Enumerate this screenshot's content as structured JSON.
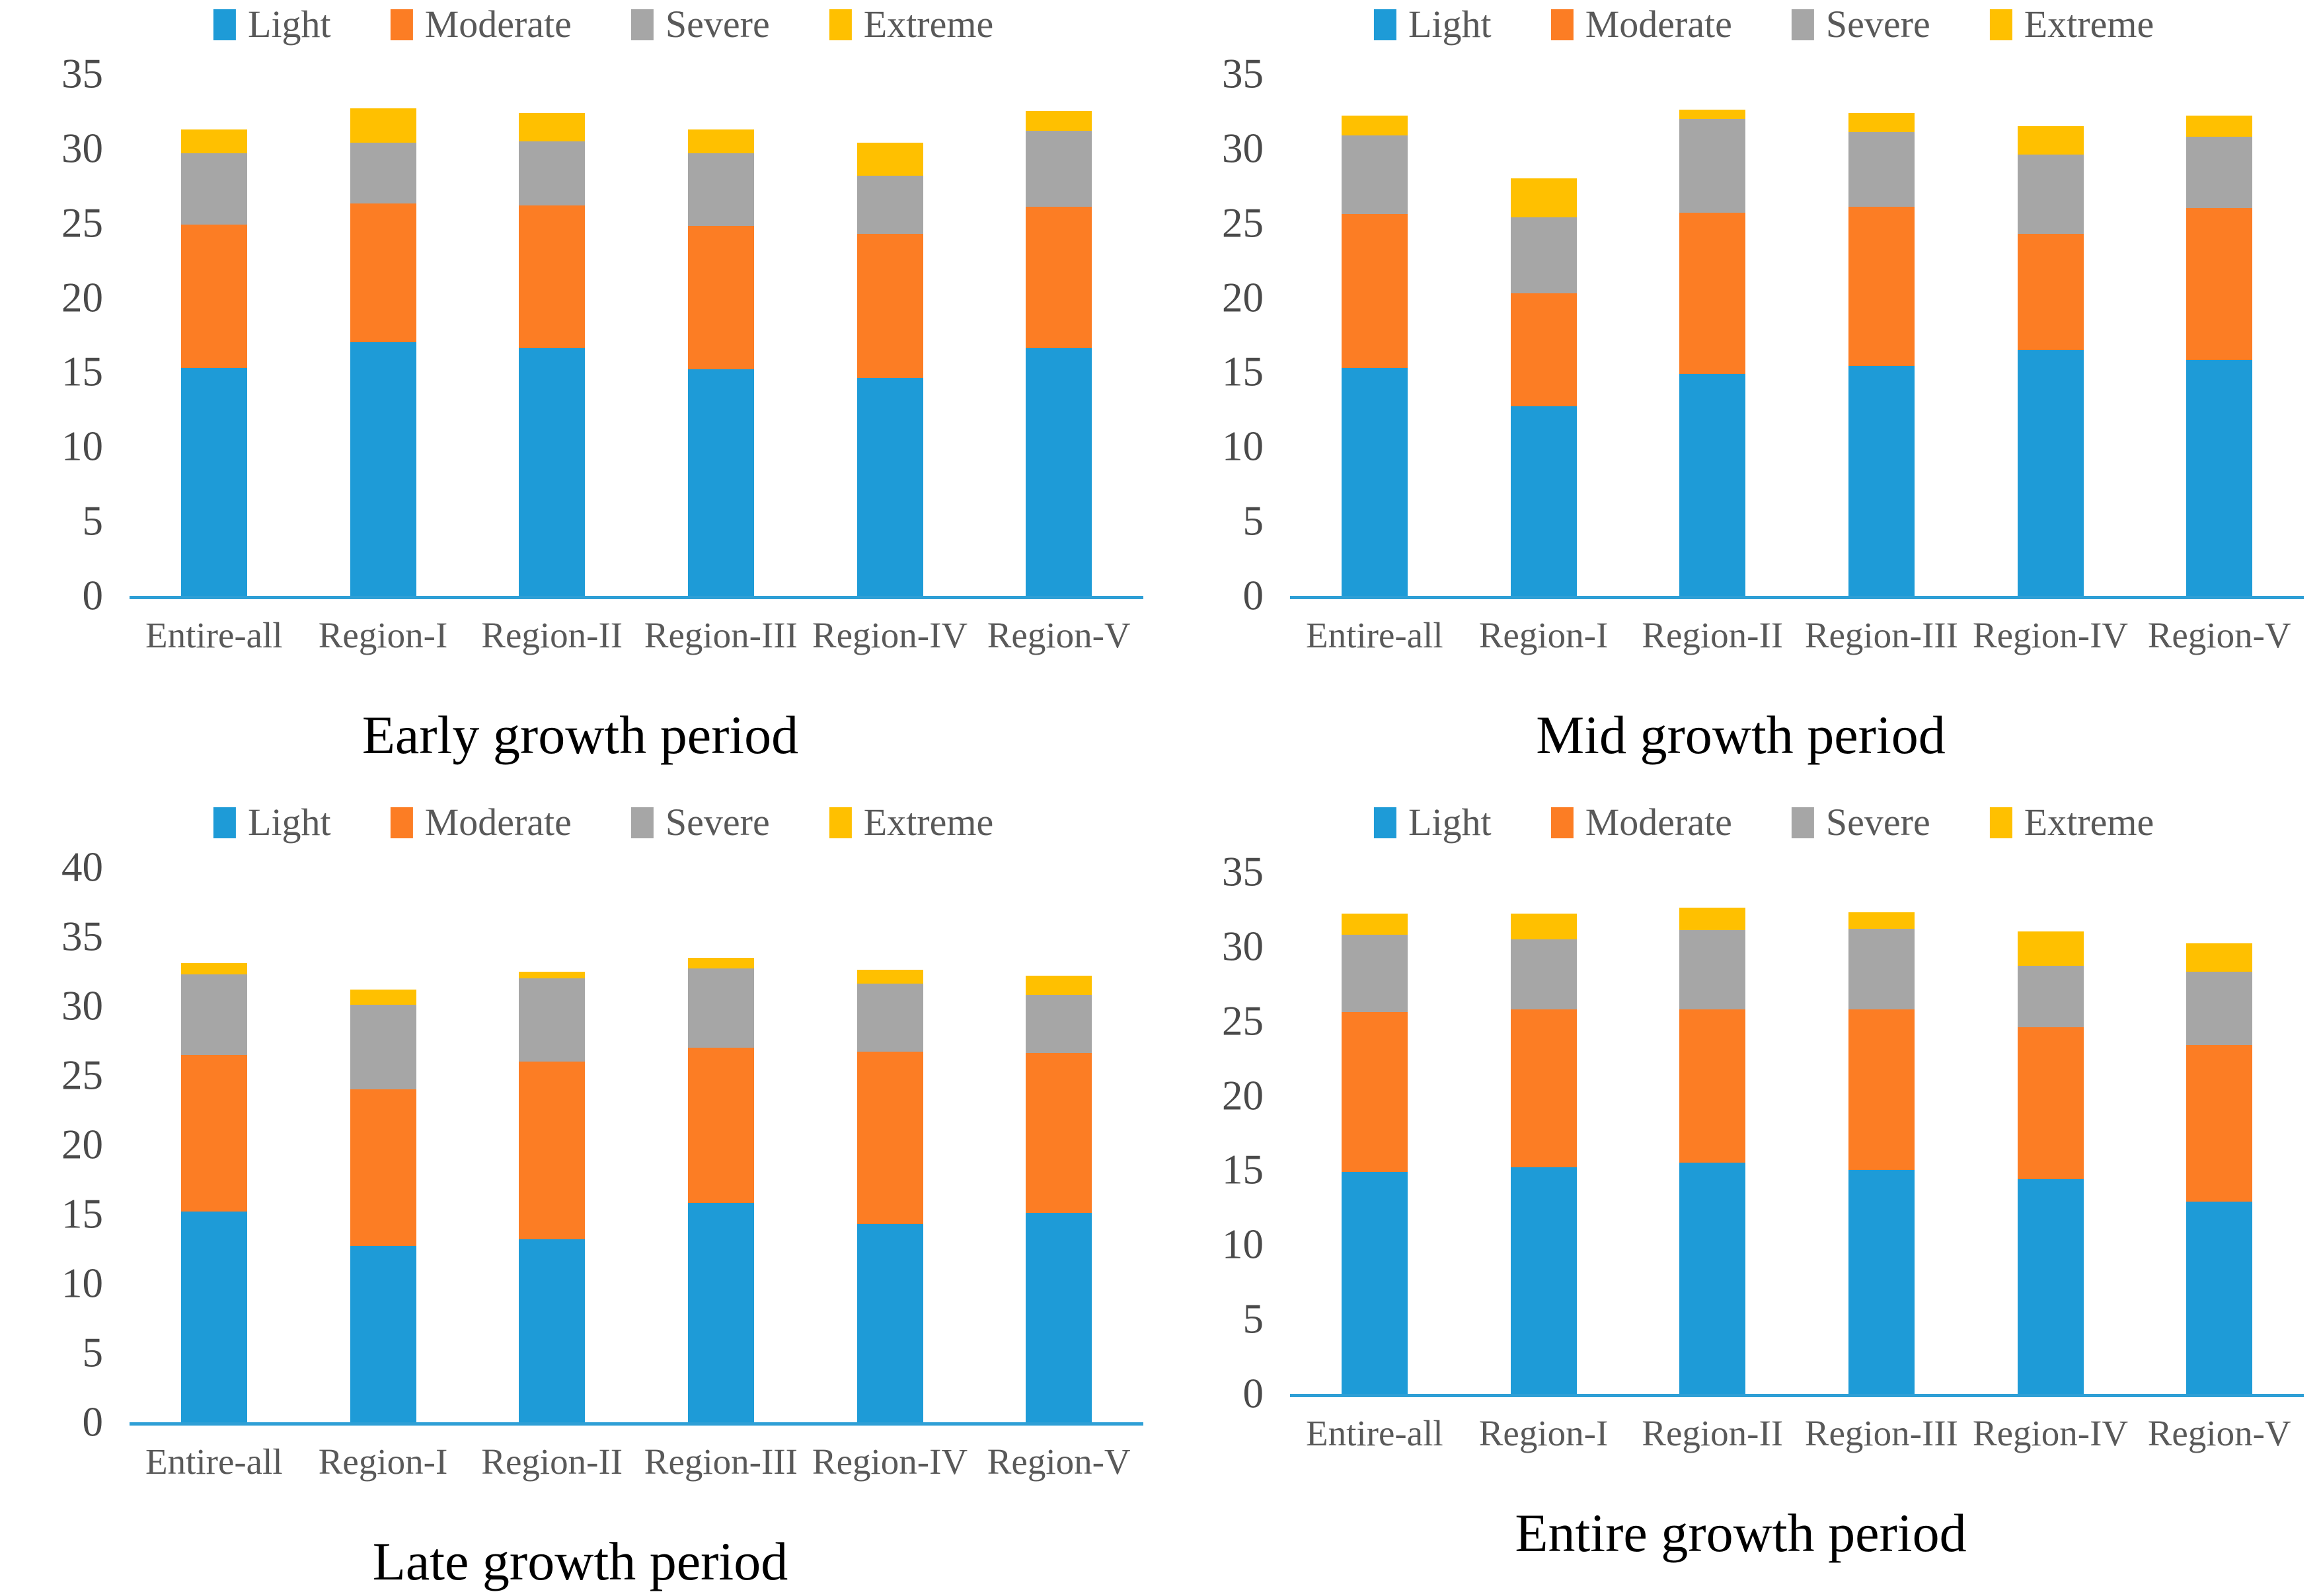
{
  "figure": {
    "description": "Four stacked bar charts of drought frequency by severity class per region and growth period",
    "background": "#ffffff"
  },
  "palette": {
    "Light": "#1e9bd7",
    "Moderate": "#fc7d24",
    "Severe": "#a6a6a6",
    "Extreme": "#ffc000"
  },
  "styles": {
    "axis_line_color": "#2e9fd6",
    "legend_text_color": "#595959",
    "tick_text_color": "#4a4a4a",
    "category_text_color": "#595959",
    "title_text_color": "#000000"
  },
  "legend": {
    "items": [
      "Light",
      "Moderate",
      "Severe",
      "Extreme"
    ],
    "position": "top"
  },
  "chart_data": [
    {
      "type": "bar",
      "stacked": true,
      "title": "Early growth period",
      "categories": [
        "Entire-all",
        "Region-I",
        "Region-II",
        "Region-III",
        "Region-IV",
        "Region-V"
      ],
      "ylim": [
        0,
        35
      ],
      "ytick_step": 5,
      "yticks": [
        0,
        5,
        10,
        15,
        20,
        25,
        30,
        35
      ],
      "grid": false,
      "legend_position": "top",
      "series": [
        {
          "name": "Light",
          "values": [
            15.3,
            17.0,
            16.6,
            15.2,
            14.6,
            16.6
          ]
        },
        {
          "name": "Moderate",
          "values": [
            9.6,
            9.3,
            9.6,
            9.6,
            9.7,
            9.5
          ]
        },
        {
          "name": "Severe",
          "values": [
            4.8,
            4.1,
            4.3,
            4.9,
            3.9,
            5.1
          ]
        },
        {
          "name": "Extreme",
          "values": [
            1.6,
            2.3,
            1.9,
            1.6,
            2.2,
            1.3
          ]
        }
      ]
    },
    {
      "type": "bar",
      "stacked": true,
      "title": "Mid growth period",
      "categories": [
        "Entire-all",
        "Region-I",
        "Region-II",
        "Region-III",
        "Region-IV",
        "Region-V"
      ],
      "ylim": [
        0,
        35
      ],
      "ytick_step": 5,
      "yticks": [
        0,
        5,
        10,
        15,
        20,
        25,
        30,
        35
      ],
      "grid": false,
      "legend_position": "top",
      "series": [
        {
          "name": "Light",
          "values": [
            15.3,
            12.7,
            14.9,
            15.4,
            16.5,
            15.8
          ]
        },
        {
          "name": "Moderate",
          "values": [
            10.3,
            7.6,
            10.8,
            10.7,
            7.8,
            10.2
          ]
        },
        {
          "name": "Severe",
          "values": [
            5.3,
            5.1,
            6.3,
            5.0,
            5.3,
            4.8
          ]
        },
        {
          "name": "Extreme",
          "values": [
            1.3,
            2.6,
            0.6,
            1.3,
            1.9,
            1.4
          ]
        }
      ]
    },
    {
      "type": "bar",
      "stacked": true,
      "title": "Late growth period",
      "categories": [
        "Entire-all",
        "Region-I",
        "Region-II",
        "Region-III",
        "Region-IV",
        "Region-V"
      ],
      "ylim": [
        0,
        40
      ],
      "ytick_step": 5,
      "yticks": [
        0,
        5,
        10,
        15,
        20,
        25,
        30,
        35,
        40
      ],
      "grid": false,
      "legend_position": "top",
      "series": [
        {
          "name": "Light",
          "values": [
            15.2,
            12.7,
            13.2,
            15.8,
            14.3,
            15.1
          ]
        },
        {
          "name": "Moderate",
          "values": [
            11.3,
            11.3,
            12.8,
            11.2,
            12.4,
            11.5
          ]
        },
        {
          "name": "Severe",
          "values": [
            5.8,
            6.1,
            6.0,
            5.7,
            4.9,
            4.2
          ]
        },
        {
          "name": "Extreme",
          "values": [
            0.8,
            1.1,
            0.5,
            0.8,
            1.0,
            1.4
          ]
        }
      ]
    },
    {
      "type": "bar",
      "stacked": true,
      "title": "Entire growth period",
      "categories": [
        "Entire-all",
        "Region-I",
        "Region-II",
        "Region-III",
        "Region-IV",
        "Region-V"
      ],
      "ylim": [
        0,
        35
      ],
      "ytick_step": 5,
      "yticks": [
        0,
        5,
        10,
        15,
        20,
        25,
        30,
        35
      ],
      "grid": false,
      "legend_position": "top",
      "series": [
        {
          "name": "Light",
          "values": [
            14.9,
            15.2,
            15.5,
            15.0,
            14.4,
            12.9
          ]
        },
        {
          "name": "Moderate",
          "values": [
            10.7,
            10.6,
            10.3,
            10.8,
            10.2,
            10.5
          ]
        },
        {
          "name": "Severe",
          "values": [
            5.2,
            4.7,
            5.3,
            5.4,
            4.1,
            4.9
          ]
        },
        {
          "name": "Extreme",
          "values": [
            1.4,
            1.7,
            1.5,
            1.1,
            2.3,
            1.9
          ]
        }
      ]
    }
  ]
}
